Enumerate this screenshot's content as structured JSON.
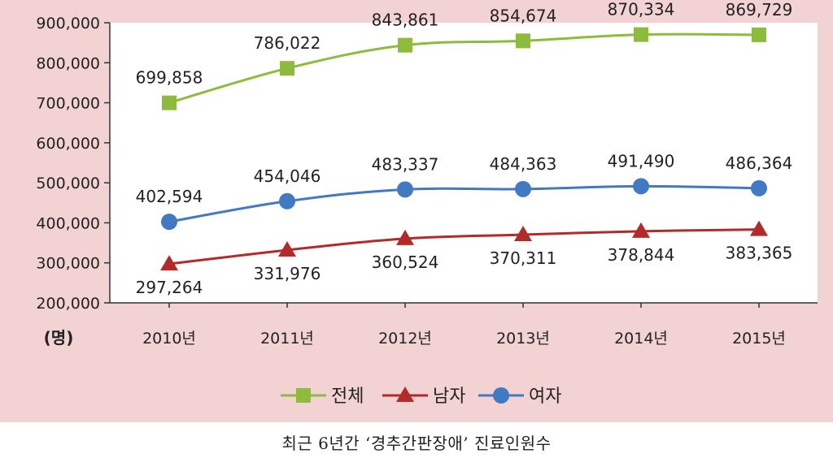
{
  "caption": "최근 6년간 ‘경추간판장애’ 진료인원수",
  "chart_data": {
    "type": "line",
    "y_unit_label": "(명)",
    "categories": [
      "2010년",
      "2011년",
      "2012년",
      "2013년",
      "2014년",
      "2015년"
    ],
    "ylim": [
      200000,
      900000
    ],
    "yticks": [
      "200,000",
      "300,000",
      "400,000",
      "500,000",
      "600,000",
      "700,000",
      "800,000",
      "900,000"
    ],
    "ytick_values": [
      200000,
      300000,
      400000,
      500000,
      600000,
      700000,
      800000,
      900000
    ],
    "grid": false,
    "legend_position": "bottom",
    "series": [
      {
        "name": "전체",
        "color": "#8dbb3c",
        "marker": "square",
        "values": [
          699858,
          786022,
          843861,
          854674,
          870334,
          869729
        ],
        "labels": [
          "699,858",
          "786,022",
          "843,861",
          "854,674",
          "870,334",
          "869,729"
        ],
        "label_position": "above"
      },
      {
        "name": "남자",
        "color": "#b32a2a",
        "marker": "triangle",
        "values": [
          297264,
          331976,
          360524,
          370311,
          378844,
          383365
        ],
        "labels": [
          "297,264",
          "331,976",
          "360,524",
          "370,311",
          "378,844",
          "383,365"
        ],
        "label_position": "below"
      },
      {
        "name": "여자",
        "color": "#4179c2",
        "marker": "circle",
        "values": [
          402594,
          454046,
          483337,
          484363,
          491490,
          486364
        ],
        "labels": [
          "402,594",
          "454,046",
          "483,337",
          "484,363",
          "491,490",
          "486,364"
        ],
        "label_position": "above"
      }
    ]
  }
}
